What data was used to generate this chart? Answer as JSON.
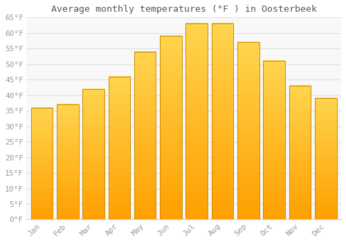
{
  "title": "Average monthly temperatures (°F ) in Oosterbeek",
  "months": [
    "Jan",
    "Feb",
    "Mar",
    "Apr",
    "May",
    "Jun",
    "Jul",
    "Aug",
    "Sep",
    "Oct",
    "Nov",
    "Dec"
  ],
  "values": [
    36,
    37,
    42,
    46,
    54,
    59,
    63,
    63,
    57,
    51,
    43,
    39
  ],
  "bar_color_top": "#FFD54F",
  "bar_color_bottom": "#FFA000",
  "bar_edge_color": "#B8860B",
  "background_color": "#FFFFFF",
  "plot_bg_color": "#F8F8F8",
  "grid_color": "#E0E0E0",
  "ylim": [
    0,
    65
  ],
  "yticks": [
    0,
    5,
    10,
    15,
    20,
    25,
    30,
    35,
    40,
    45,
    50,
    55,
    60,
    65
  ],
  "title_fontsize": 9.5,
  "tick_fontsize": 8,
  "tick_font_color": "#999999"
}
